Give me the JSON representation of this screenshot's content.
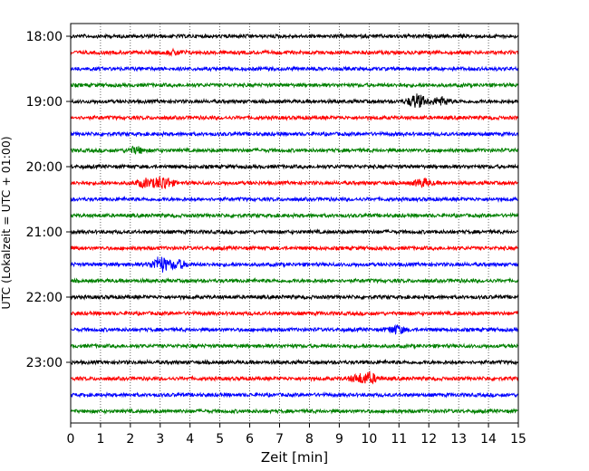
{
  "chart_data": {
    "type": "line",
    "title": "",
    "xlabel": "Zeit  [min]",
    "ylabel": "UTC (Lokalzeit = UTC + 01:00)",
    "xlim": [
      0,
      15
    ],
    "x_ticks": [
      0,
      1,
      2,
      3,
      4,
      5,
      6,
      7,
      8,
      9,
      10,
      11,
      12,
      13,
      14,
      15
    ],
    "y_ticks": [
      {
        "label": "18:00",
        "trace_index": 0
      },
      {
        "label": "19:00",
        "trace_index": 4
      },
      {
        "label": "20:00",
        "trace_index": 8
      },
      {
        "label": "21:00",
        "trace_index": 12
      },
      {
        "label": "22:00",
        "trace_index": 16
      },
      {
        "label": "23:00",
        "trace_index": 20
      }
    ],
    "grid": "vertical dotted lines at each minute",
    "color_cycle": [
      "#000000",
      "#ff0000",
      "#0000ff",
      "#008000"
    ],
    "trace_interval_minutes": 15,
    "start_time": "18:00",
    "events": [
      {
        "trace_index": 4,
        "time_min": 11.6,
        "amplitude": 7
      },
      {
        "trace_index": 4,
        "time_min": 12.4,
        "amplitude": 4
      },
      {
        "trace_index": 9,
        "time_min": 3.1,
        "amplitude": 7
      },
      {
        "trace_index": 9,
        "time_min": 2.5,
        "amplitude": 4
      },
      {
        "trace_index": 9,
        "time_min": 11.8,
        "amplitude": 4
      },
      {
        "trace_index": 14,
        "time_min": 3.0,
        "amplitude": 8
      },
      {
        "trace_index": 14,
        "time_min": 3.6,
        "amplitude": 4
      },
      {
        "trace_index": 18,
        "time_min": 10.9,
        "amplitude": 4
      },
      {
        "trace_index": 21,
        "time_min": 10.0,
        "amplitude": 5
      },
      {
        "trace_index": 21,
        "time_min": 9.6,
        "amplitude": 3
      },
      {
        "trace_index": 7,
        "time_min": 2.2,
        "amplitude": 3
      },
      {
        "trace_index": 1,
        "time_min": 3.5,
        "amplitude": 2
      }
    ]
  }
}
